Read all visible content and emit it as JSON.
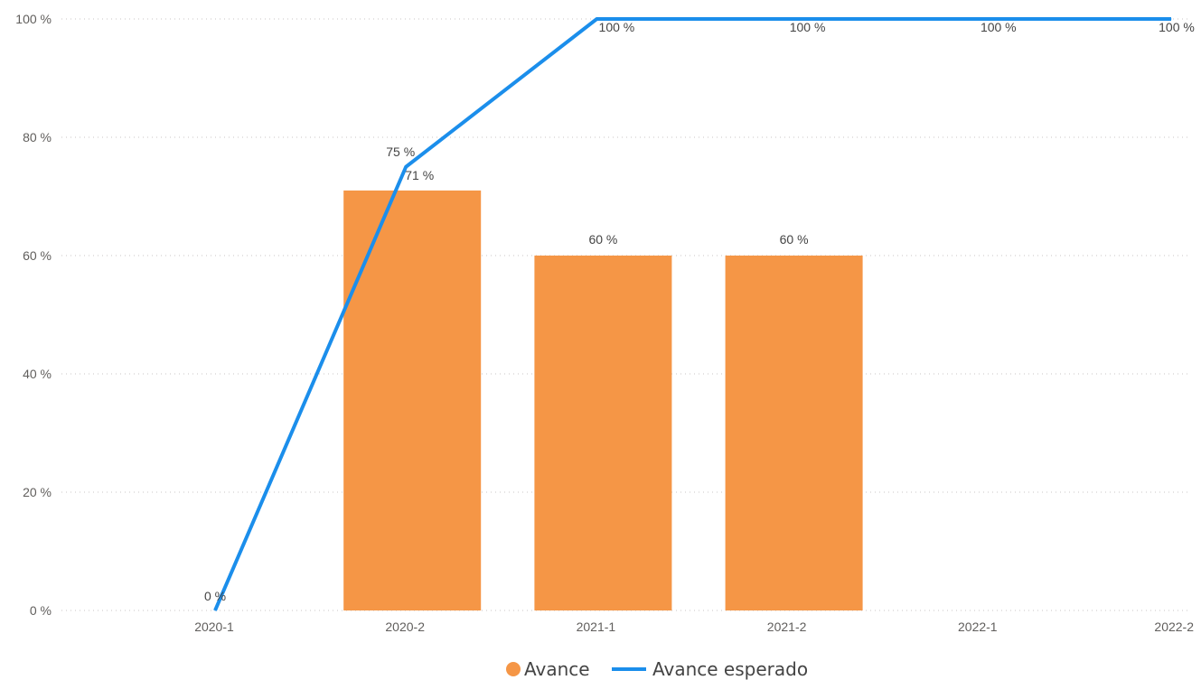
{
  "chart_data": {
    "type": "bar",
    "categories": [
      "2020-1",
      "2020-2",
      "2021-1",
      "2021-2",
      "2022-1",
      "2022-2"
    ],
    "series": [
      {
        "name": "Avance",
        "kind": "bar",
        "color": "#F59646",
        "values": [
          null,
          71,
          60,
          60,
          null,
          null
        ],
        "labels": [
          "",
          "71 %",
          "60 %",
          "60 %",
          "",
          ""
        ]
      },
      {
        "name": "Avance esperado",
        "kind": "line",
        "color": "#1B8EEB",
        "values": [
          0,
          75,
          100,
          100,
          100,
          100
        ],
        "labels": [
          "0 %",
          "75 %",
          "100 %",
          "100 %",
          "100 %",
          "100 %"
        ]
      }
    ],
    "yticks": [
      "0 %",
      "20 %",
      "40 %",
      "60 %",
      "80 %",
      "100 %"
    ],
    "ylim": [
      0,
      100
    ],
    "grid": true,
    "legend_position": "bottom-center",
    "title": "",
    "xlabel": "",
    "ylabel": ""
  }
}
